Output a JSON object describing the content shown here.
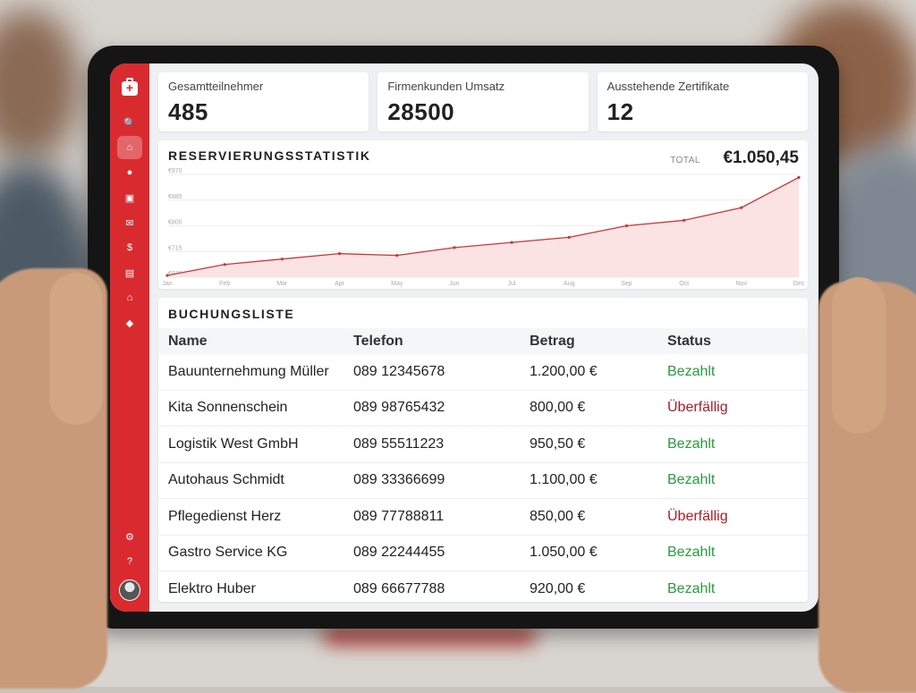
{
  "cards": [
    {
      "label": "Gesamtteilnehmer",
      "value": "485"
    },
    {
      "label": "Firmenkunden Umsatz",
      "value": "28500"
    },
    {
      "label": "Ausstehende Zertifikate",
      "value": "12"
    }
  ],
  "chart": {
    "title": "RESERVIERUNGSSTATISTIK",
    "total_label": "TOTAL",
    "total_value": "€1.050,45"
  },
  "chart_data": {
    "type": "area",
    "x": [
      "Jan",
      "Feb",
      "Mar",
      "Apr",
      "May",
      "Jun",
      "Jul",
      "Aug",
      "Sep",
      "Oct",
      "Nov",
      "Dec"
    ],
    "series": [
      {
        "values": [
          636,
          672,
          690,
          708,
          702,
          728,
          745,
          762,
          800,
          818,
          860,
          960
        ]
      }
    ],
    "y_ticks": [
      "€970",
      "€885",
      "€800",
      "€715",
      "€630"
    ],
    "ylim": [
      630,
      970
    ],
    "color": "#c8373a",
    "fill": "#fbe3e3",
    "grid": true
  },
  "list": {
    "title": "BUCHUNGSLISTE",
    "columns": [
      "Name",
      "Telefon",
      "Betrag",
      "Status"
    ],
    "rows": [
      {
        "name": "Bauunternehmung Müller",
        "phone": "089 12345678",
        "amount": "1.200,00 €",
        "status": "Bezahlt",
        "status_type": "paid"
      },
      {
        "name": "Kita Sonnenschein",
        "phone": "089 98765432",
        "amount": "800,00 €",
        "status": "Überfällig",
        "status_type": "overdue"
      },
      {
        "name": "Logistik West GmbH",
        "phone": "089 55511223",
        "amount": "950,50 €",
        "status": "Bezahlt",
        "status_type": "paid"
      },
      {
        "name": "Autohaus Schmidt",
        "phone": "089 33366699",
        "amount": "1.100,00 €",
        "status": "Bezahlt",
        "status_type": "paid"
      },
      {
        "name": "Pflegedienst Herz",
        "phone": "089 77788811",
        "amount": "850,00 €",
        "status": "Überfällig",
        "status_type": "overdue"
      },
      {
        "name": "Gastro Service KG",
        "phone": "089 22244455",
        "amount": "1.050,00 €",
        "status": "Bezahlt",
        "status_type": "paid"
      },
      {
        "name": "Elektro Huber",
        "phone": "089 66677788",
        "amount": "920,00 €",
        "status": "Bezahlt",
        "status_type": "paid"
      }
    ]
  },
  "sidebar": {
    "items": [
      {
        "name": "search-icon",
        "glyph": "🔍"
      },
      {
        "name": "home-icon",
        "glyph": "⌂",
        "active": true
      },
      {
        "name": "user-icon",
        "glyph": "●"
      },
      {
        "name": "id-card-icon",
        "glyph": "▣"
      },
      {
        "name": "mail-icon",
        "glyph": "✉"
      },
      {
        "name": "invoice-icon",
        "glyph": "$"
      },
      {
        "name": "money-icon",
        "glyph": "▤"
      },
      {
        "name": "bank-icon",
        "glyph": "⌂"
      },
      {
        "name": "tag-icon",
        "glyph": "◆"
      }
    ],
    "bottom": [
      {
        "name": "settings-icon",
        "glyph": "⚙"
      },
      {
        "name": "help-icon",
        "glyph": "?"
      }
    ]
  }
}
